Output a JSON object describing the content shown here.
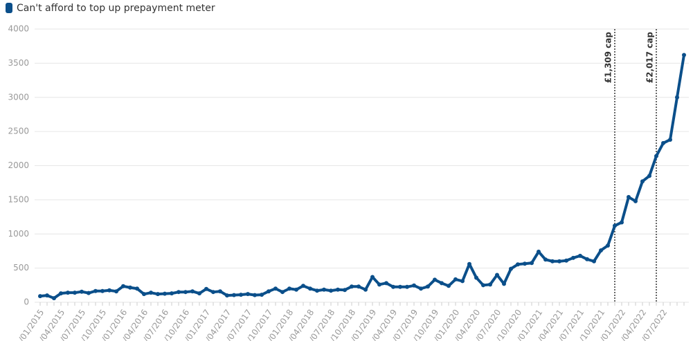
{
  "chart_data": {
    "type": "line",
    "series": [
      {
        "name": "Can't afford to top up prepayment meter",
        "color": "#0b4f8a",
        "values": [
          90,
          100,
          60,
          130,
          140,
          140,
          155,
          135,
          165,
          165,
          175,
          160,
          235,
          215,
          200,
          120,
          140,
          120,
          125,
          130,
          150,
          150,
          160,
          130,
          195,
          150,
          160,
          100,
          105,
          110,
          120,
          105,
          110,
          160,
          200,
          150,
          200,
          185,
          240,
          200,
          170,
          185,
          170,
          185,
          180,
          230,
          230,
          185,
          370,
          260,
          280,
          225,
          225,
          225,
          245,
          200,
          230,
          330,
          280,
          240,
          335,
          310,
          560,
          360,
          250,
          260,
          400,
          270,
          490,
          555,
          565,
          575,
          740,
          625,
          600,
          600,
          610,
          650,
          680,
          630,
          600,
          760,
          830,
          1120,
          1170,
          1540,
          1480,
          1770,
          1850,
          2140,
          2330,
          2380,
          3000,
          3620
        ]
      }
    ],
    "categories": [
      "/01/2015",
      null,
      null,
      "/04/2015",
      null,
      null,
      "/07/2015",
      null,
      null,
      "/10/2015",
      null,
      null,
      "/01/2016",
      null,
      null,
      "/04/2016",
      null,
      null,
      "/07/2016",
      null,
      null,
      "/10/2016",
      null,
      null,
      "/01/2017",
      null,
      null,
      "/04/2017",
      null,
      null,
      "/07/2017",
      null,
      null,
      "/10/2017",
      null,
      null,
      "/01/2018",
      null,
      null,
      "/04/2018",
      null,
      null,
      "/07/2018",
      null,
      null,
      "/10/2018",
      null,
      null,
      "/01/2019",
      null,
      null,
      "/04/2019",
      null,
      null,
      "/07/2019",
      null,
      null,
      "/10/2019",
      null,
      null,
      "/01/2020",
      null,
      null,
      "/04/2020",
      null,
      null,
      "/07/2020",
      null,
      null,
      "/10/2020",
      null,
      null,
      "/01/2021",
      null,
      null,
      "/04/2021",
      null,
      null,
      "/07/2021",
      null,
      null,
      "/10/2021",
      null,
      null,
      "/01/2022",
      null,
      null,
      "/04/2022",
      null,
      null,
      "/07/2022",
      null,
      null,
      null
    ],
    "ylim": [
      0,
      4000
    ],
    "yticks": [
      0,
      500,
      1000,
      1500,
      2000,
      2500,
      3000,
      3500,
      4000
    ],
    "grid": true,
    "annotations": [
      {
        "text": "£1,309 cap",
        "at": 83
      },
      {
        "text": "£2,017 cap",
        "at": 89
      }
    ]
  }
}
